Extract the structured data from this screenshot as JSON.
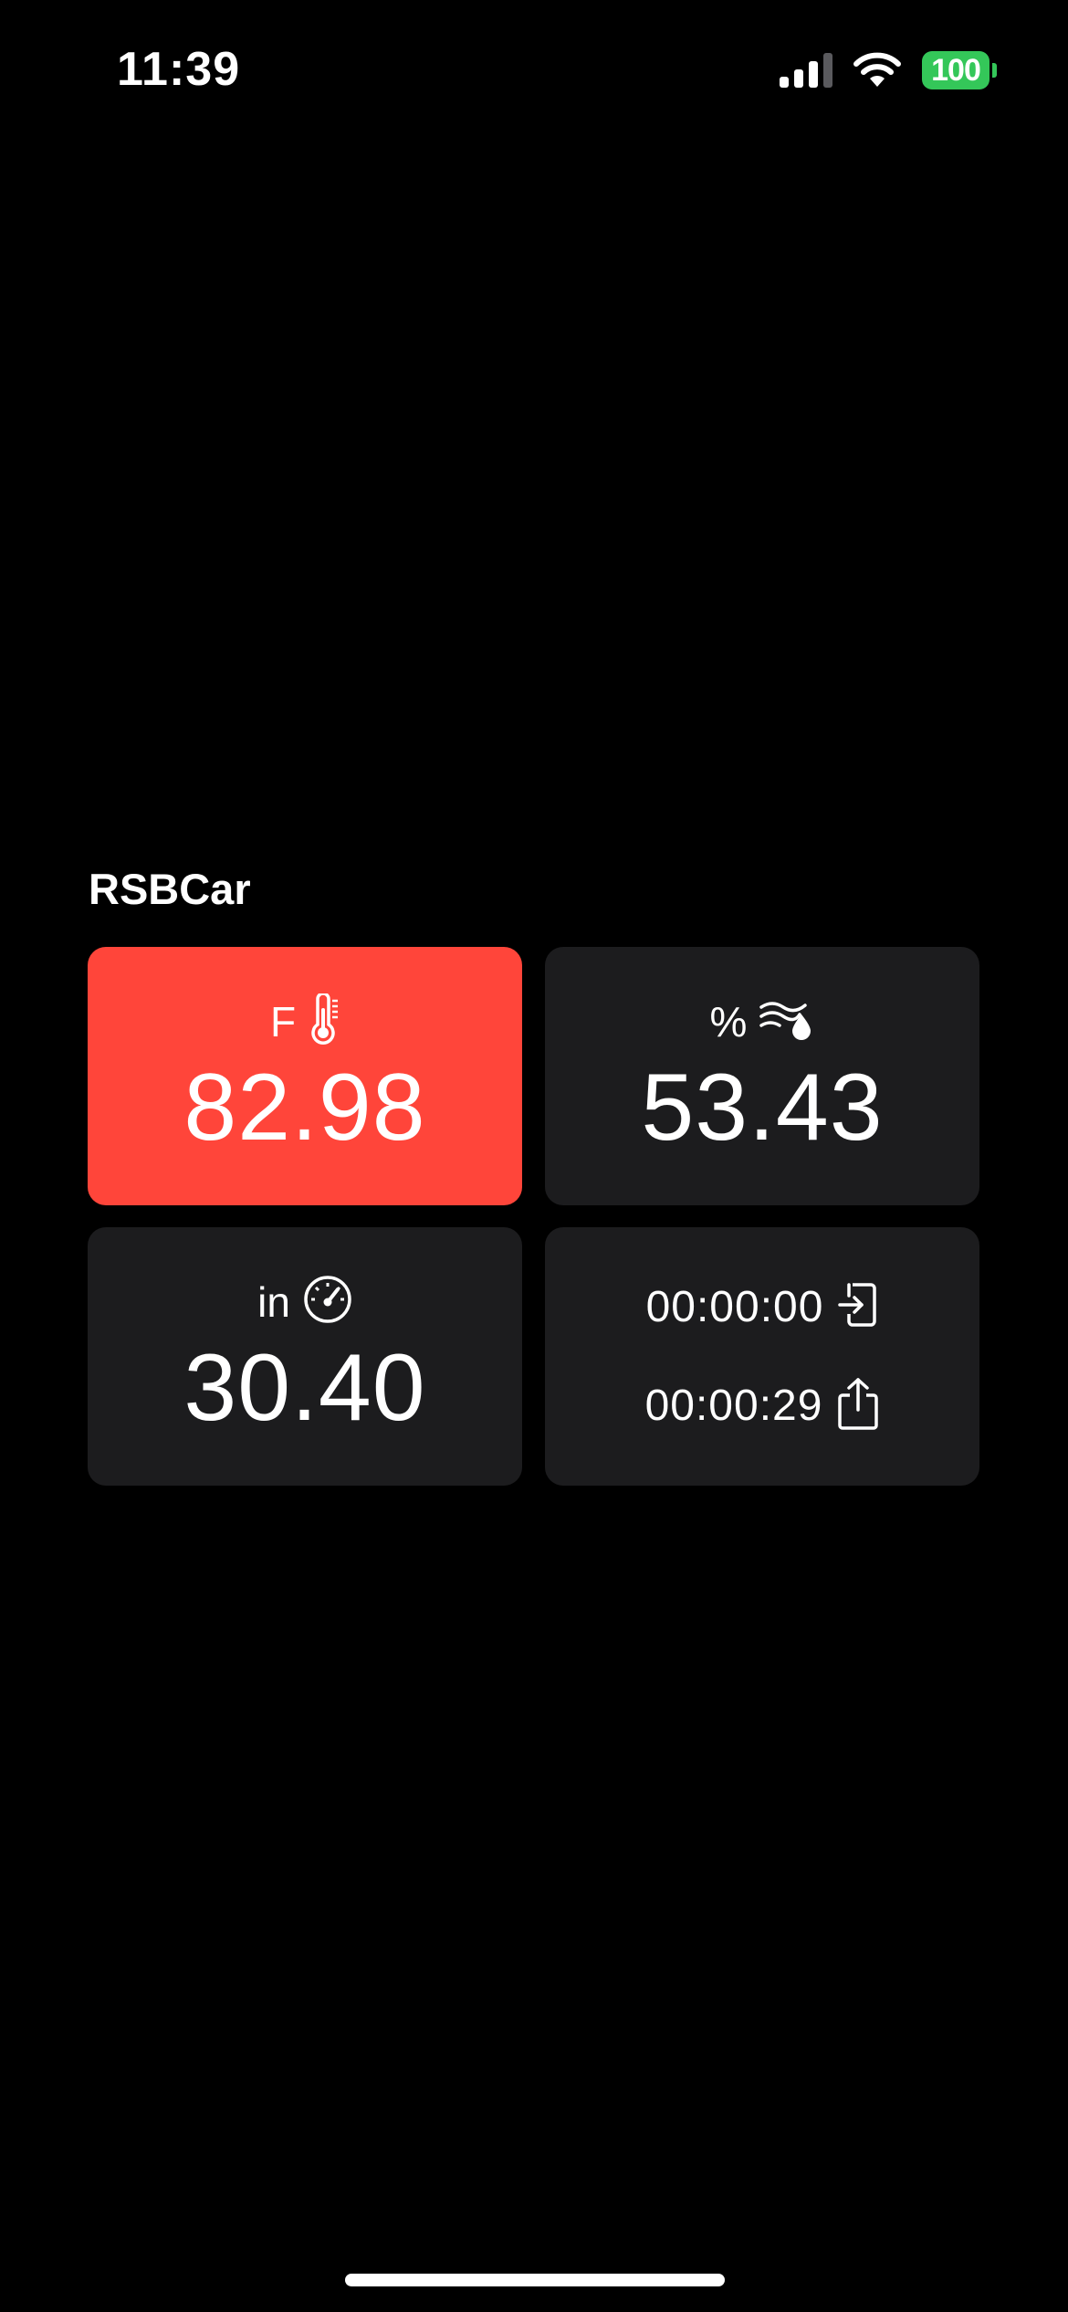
{
  "status_bar": {
    "time": "11:39",
    "battery_level": "100",
    "battery_color": "#34c759",
    "cellular_icon": "cellular-signal-icon",
    "wifi_icon": "wifi-icon"
  },
  "widget": {
    "title": "RSBCar",
    "tiles": [
      {
        "unit": "F",
        "icon": "thermometer-icon",
        "value": "82.98",
        "background": "#ff453a"
      },
      {
        "unit": "%",
        "icon": "humidity-icon",
        "value": "53.43",
        "background": "#1c1c1e"
      },
      {
        "unit": "in",
        "icon": "gauge-icon",
        "value": "30.40",
        "background": "#1c1c1e"
      }
    ],
    "timers": [
      {
        "value": "00:00:00",
        "icon": "enter-icon"
      },
      {
        "value": "00:00:29",
        "icon": "share-icon"
      }
    ]
  }
}
